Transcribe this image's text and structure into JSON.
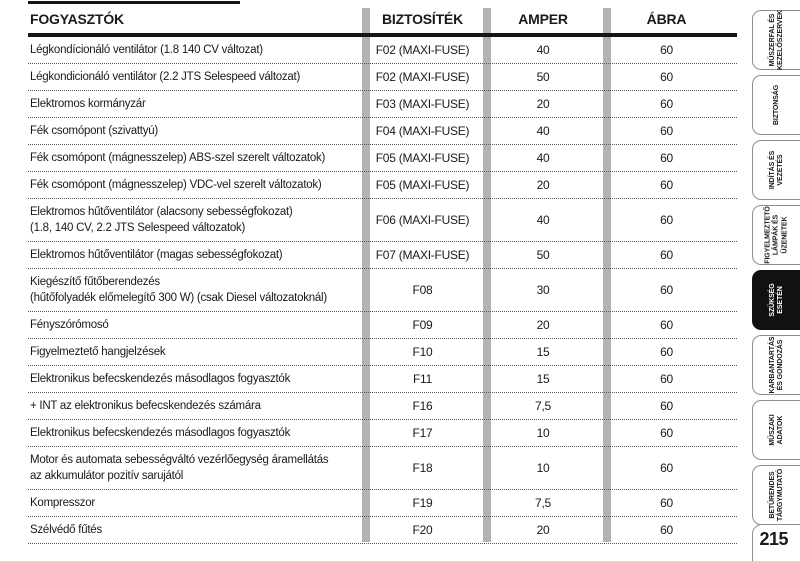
{
  "table": {
    "headers": [
      "FOGYASZTÓK",
      "BIZTOSÍTÉK",
      "AMPER",
      "ÁBRA"
    ],
    "rows": [
      {
        "consumer": "Légkondícionáló ventilátor (1.8 140 CV változat)",
        "fuse": "F02 (MAXI-FUSE)",
        "amper": "40",
        "abra": "60"
      },
      {
        "consumer": "Légkondicionáló ventilátor (2.2 JTS Selespeed változat)",
        "fuse": "F02 (MAXI-FUSE)",
        "amper": "50",
        "abra": "60"
      },
      {
        "consumer": "Elektromos kormányzár",
        "fuse": "F03 (MAXI-FUSE)",
        "amper": "20",
        "abra": "60"
      },
      {
        "consumer": "Fék csomópont (szivattyú)",
        "fuse": "F04 (MAXI-FUSE)",
        "amper": "40",
        "abra": "60"
      },
      {
        "consumer": "Fék csomópont (mágnesszelep) ABS-szel szerelt változatok)",
        "fuse": "F05 (MAXI-FUSE)",
        "amper": "40",
        "abra": "60"
      },
      {
        "consumer": "Fék csomópont (mágnesszelep) VDC-vel szerelt változatok)",
        "fuse": "F05 (MAXI-FUSE)",
        "amper": "20",
        "abra": "60"
      },
      {
        "consumer": "Elektromos hűtőventilátor (alacsony sebességfokozat)\n(1.8, 140 CV, 2.2 JTS Selespeed változatok)",
        "fuse": "F06 (MAXI-FUSE)",
        "amper": "40",
        "abra": "60"
      },
      {
        "consumer": "Elektromos hűtőventilátor (magas sebességfokozat)",
        "fuse": "F07 (MAXI-FUSE)",
        "amper": "50",
        "abra": "60"
      },
      {
        "consumer": "Kiegészítő fűtőberendezés\n(hűtőfolyadék előmelegítő 300 W) (csak Diesel változatoknál)",
        "fuse": "F08",
        "amper": "30",
        "abra": "60"
      },
      {
        "consumer": "Fényszórómosó",
        "fuse": "F09",
        "amper": "20",
        "abra": "60"
      },
      {
        "consumer": "Figyelmeztető hangjelzések",
        "fuse": "F10",
        "amper": "15",
        "abra": "60"
      },
      {
        "consumer": "Elektronikus befecskendezés másodlagos fogyasztók",
        "fuse": "F11",
        "amper": "15",
        "abra": "60"
      },
      {
        "consumer": "+ INT az elektronikus befecskendezés számára",
        "fuse": "F16",
        "amper": "7,5",
        "abra": "60"
      },
      {
        "consumer": "Elektronikus befecskendezés másodlagos fogyasztók",
        "fuse": "F17",
        "amper": "10",
        "abra": "60"
      },
      {
        "consumer": "Motor és automata sebességváltó vezérlőegység áramellátás\naz akkumulátor pozitív sarujától",
        "fuse": "F18",
        "amper": "10",
        "abra": "60"
      },
      {
        "consumer": "Kompresszor",
        "fuse": "F19",
        "amper": "7,5",
        "abra": "60"
      },
      {
        "consumer": "Szélvédő fűtés",
        "fuse": "F20",
        "amper": "20",
        "abra": "60"
      }
    ]
  },
  "sidebar": {
    "tabs": [
      {
        "id": "muszerfal",
        "label": "MŰSZERFAL ÉS\nKEZELŐSZERVEK",
        "active": false
      },
      {
        "id": "biztonsag",
        "label": "BIZTONSÁG",
        "active": false
      },
      {
        "id": "inditas",
        "label": "INDÍTÁS ÉS\nVEZETÉS",
        "active": false
      },
      {
        "id": "figyelmezteto",
        "label": "FIGYELMEZTETŐ\nLÁMPÁK ÉS\nÜZENETEK",
        "active": false
      },
      {
        "id": "szukseg",
        "label": "SZÜKSÉG\nESETÉN",
        "active": true
      },
      {
        "id": "karbantartas",
        "label": "KARBANTARTÁS\nÉS GONDOZÁS",
        "active": false
      },
      {
        "id": "muszaki",
        "label": "MŰSZAKI\nADATOK",
        "active": false
      },
      {
        "id": "beturendes",
        "label": "BETŰRENDES\nTÁRGYMUTATÓ",
        "active": false
      }
    ],
    "page_number": "215"
  },
  "colors": {
    "text": "#1a1a1a",
    "divider_gray": "#b3b3b3",
    "tab_border": "#8f8f8f",
    "active_tab_bg": "#111111",
    "active_tab_text": "#ffffff"
  }
}
